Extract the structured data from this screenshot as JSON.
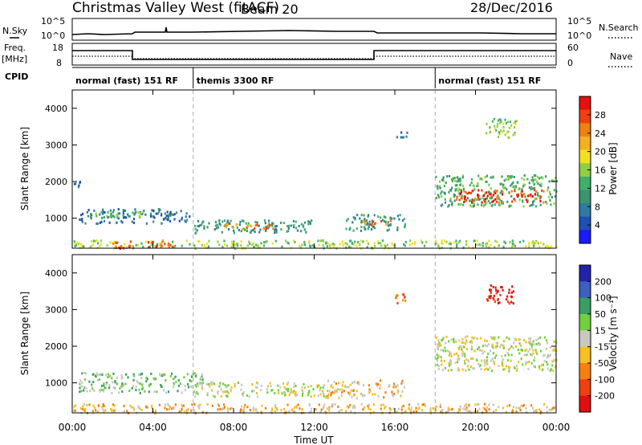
{
  "header": {
    "title": "Christmas Valley West (fitACF)",
    "beam": "Beam 20",
    "date": "28/Dec/2016"
  },
  "top_strips": {
    "nsky_label": "N.Sky",
    "nsky_ticks": [
      "10^5",
      "10^0"
    ],
    "nsearch_label": "N.Search",
    "nsearch_ticks": [
      "10^5",
      "10^0"
    ],
    "freq_label_1": "Freq.",
    "freq_label_2": "[MHz]",
    "freq_ticks": [
      "18",
      "8"
    ],
    "nave_label": "Nave",
    "nave_ticks": [
      "60",
      "0"
    ],
    "cpid_label": "CPID"
  },
  "cpid_segments": [
    {
      "label": "normal (fast) 151 RF",
      "start_h": 0,
      "end_h": 6
    },
    {
      "label": "themis 3300 RF",
      "start_h": 6,
      "end_h": 18
    },
    {
      "label": "normal (fast) 151 RF",
      "start_h": 18,
      "end_h": 24
    }
  ],
  "x_axis": {
    "title": "Time UT",
    "ticks": [
      "00:00",
      "04:00",
      "08:00",
      "12:00",
      "16:00",
      "20:00",
      "00:00"
    ]
  },
  "power_panel": {
    "ylabel": "Slant Range [km]",
    "yticks": [
      "1000",
      "2000",
      "3000",
      "4000"
    ],
    "colorbar_label": "Power [dB]",
    "colorbar_ticks": [
      "4",
      "8",
      "12",
      "16",
      "20",
      "24",
      "28"
    ],
    "colors": [
      "#1a1aff",
      "#1e4fb4",
      "#2f7aa0",
      "#3c9370",
      "#3fb06a",
      "#90d040",
      "#f0e020",
      "#f5b020",
      "#f08010",
      "#ee4010",
      "#e61010"
    ]
  },
  "velocity_panel": {
    "ylabel": "Slant Range [km]",
    "yticks": [
      "1000",
      "2000",
      "3000",
      "4000"
    ],
    "colorbar_label": "Velocity [m s⁻¹]",
    "colorbar_ticks": [
      "200",
      "100",
      "50",
      "15",
      "-15",
      "-50",
      "-100",
      "-200"
    ],
    "colors": [
      "#2222aa",
      "#3b60c0",
      "#3a9e64",
      "#70d040",
      "#c8c8c0",
      "#f5c020",
      "#f58010",
      "#ee4010",
      "#e01010"
    ]
  },
  "chart_data": {
    "type": "heatmap",
    "x_range_hours": [
      0,
      24
    ],
    "y_range_km": [
      180,
      4500
    ],
    "power_features": [
      {
        "t0": 0.0,
        "t1": 0.4,
        "r0": 1850,
        "r1": 2050,
        "level": 2
      },
      {
        "t0": 0.3,
        "t1": 5.8,
        "r0": 880,
        "r1": 1280,
        "level": 2
      },
      {
        "t0": 1.0,
        "t1": 3.5,
        "r0": 1050,
        "r1": 1200,
        "level": 4
      },
      {
        "t0": 6.0,
        "t1": 12.0,
        "r0": 620,
        "r1": 980,
        "level": 3
      },
      {
        "t0": 7.5,
        "t1": 10.0,
        "r0": 700,
        "r1": 880,
        "level": 8
      },
      {
        "t0": 13.5,
        "t1": 16.5,
        "r0": 680,
        "r1": 1120,
        "level": 3
      },
      {
        "t0": 14.3,
        "t1": 15.8,
        "r0": 850,
        "r1": 1000,
        "level": 8
      },
      {
        "t0": 0.0,
        "t1": 24.0,
        "r0": 200,
        "r1": 420,
        "level": 5
      },
      {
        "t0": 2.0,
        "t1": 5.0,
        "r0": 200,
        "r1": 400,
        "level": 9
      },
      {
        "t0": 18.0,
        "t1": 24.0,
        "r0": 1350,
        "r1": 2200,
        "level": 4
      },
      {
        "t0": 19.0,
        "t1": 23.5,
        "r0": 1450,
        "r1": 1800,
        "level": 9
      },
      {
        "t0": 16.0,
        "t1": 16.6,
        "r0": 3150,
        "r1": 3450,
        "level": 2
      },
      {
        "t0": 20.5,
        "t1": 22.0,
        "r0": 3200,
        "r1": 3750,
        "level": 5
      }
    ],
    "velocity_features": [
      {
        "t0": 0.3,
        "t1": 6.5,
        "r0": 750,
        "r1": 1300,
        "level": 3
      },
      {
        "t0": 6.0,
        "t1": 12.5,
        "r0": 650,
        "r1": 1050,
        "level": 4
      },
      {
        "t0": 12.5,
        "t1": 16.5,
        "r0": 600,
        "r1": 1100,
        "level": 5
      },
      {
        "t0": 0.0,
        "t1": 24.0,
        "r0": 200,
        "r1": 450,
        "level": 5
      },
      {
        "t0": 18.0,
        "t1": 24.0,
        "r0": 1350,
        "r1": 2300,
        "level": 4
      },
      {
        "t0": 20.5,
        "t1": 22.0,
        "r0": 3200,
        "r1": 3700,
        "level": 8
      },
      {
        "t0": 16.0,
        "t1": 16.6,
        "r0": 3150,
        "r1": 3450,
        "level": 7
      }
    ]
  }
}
